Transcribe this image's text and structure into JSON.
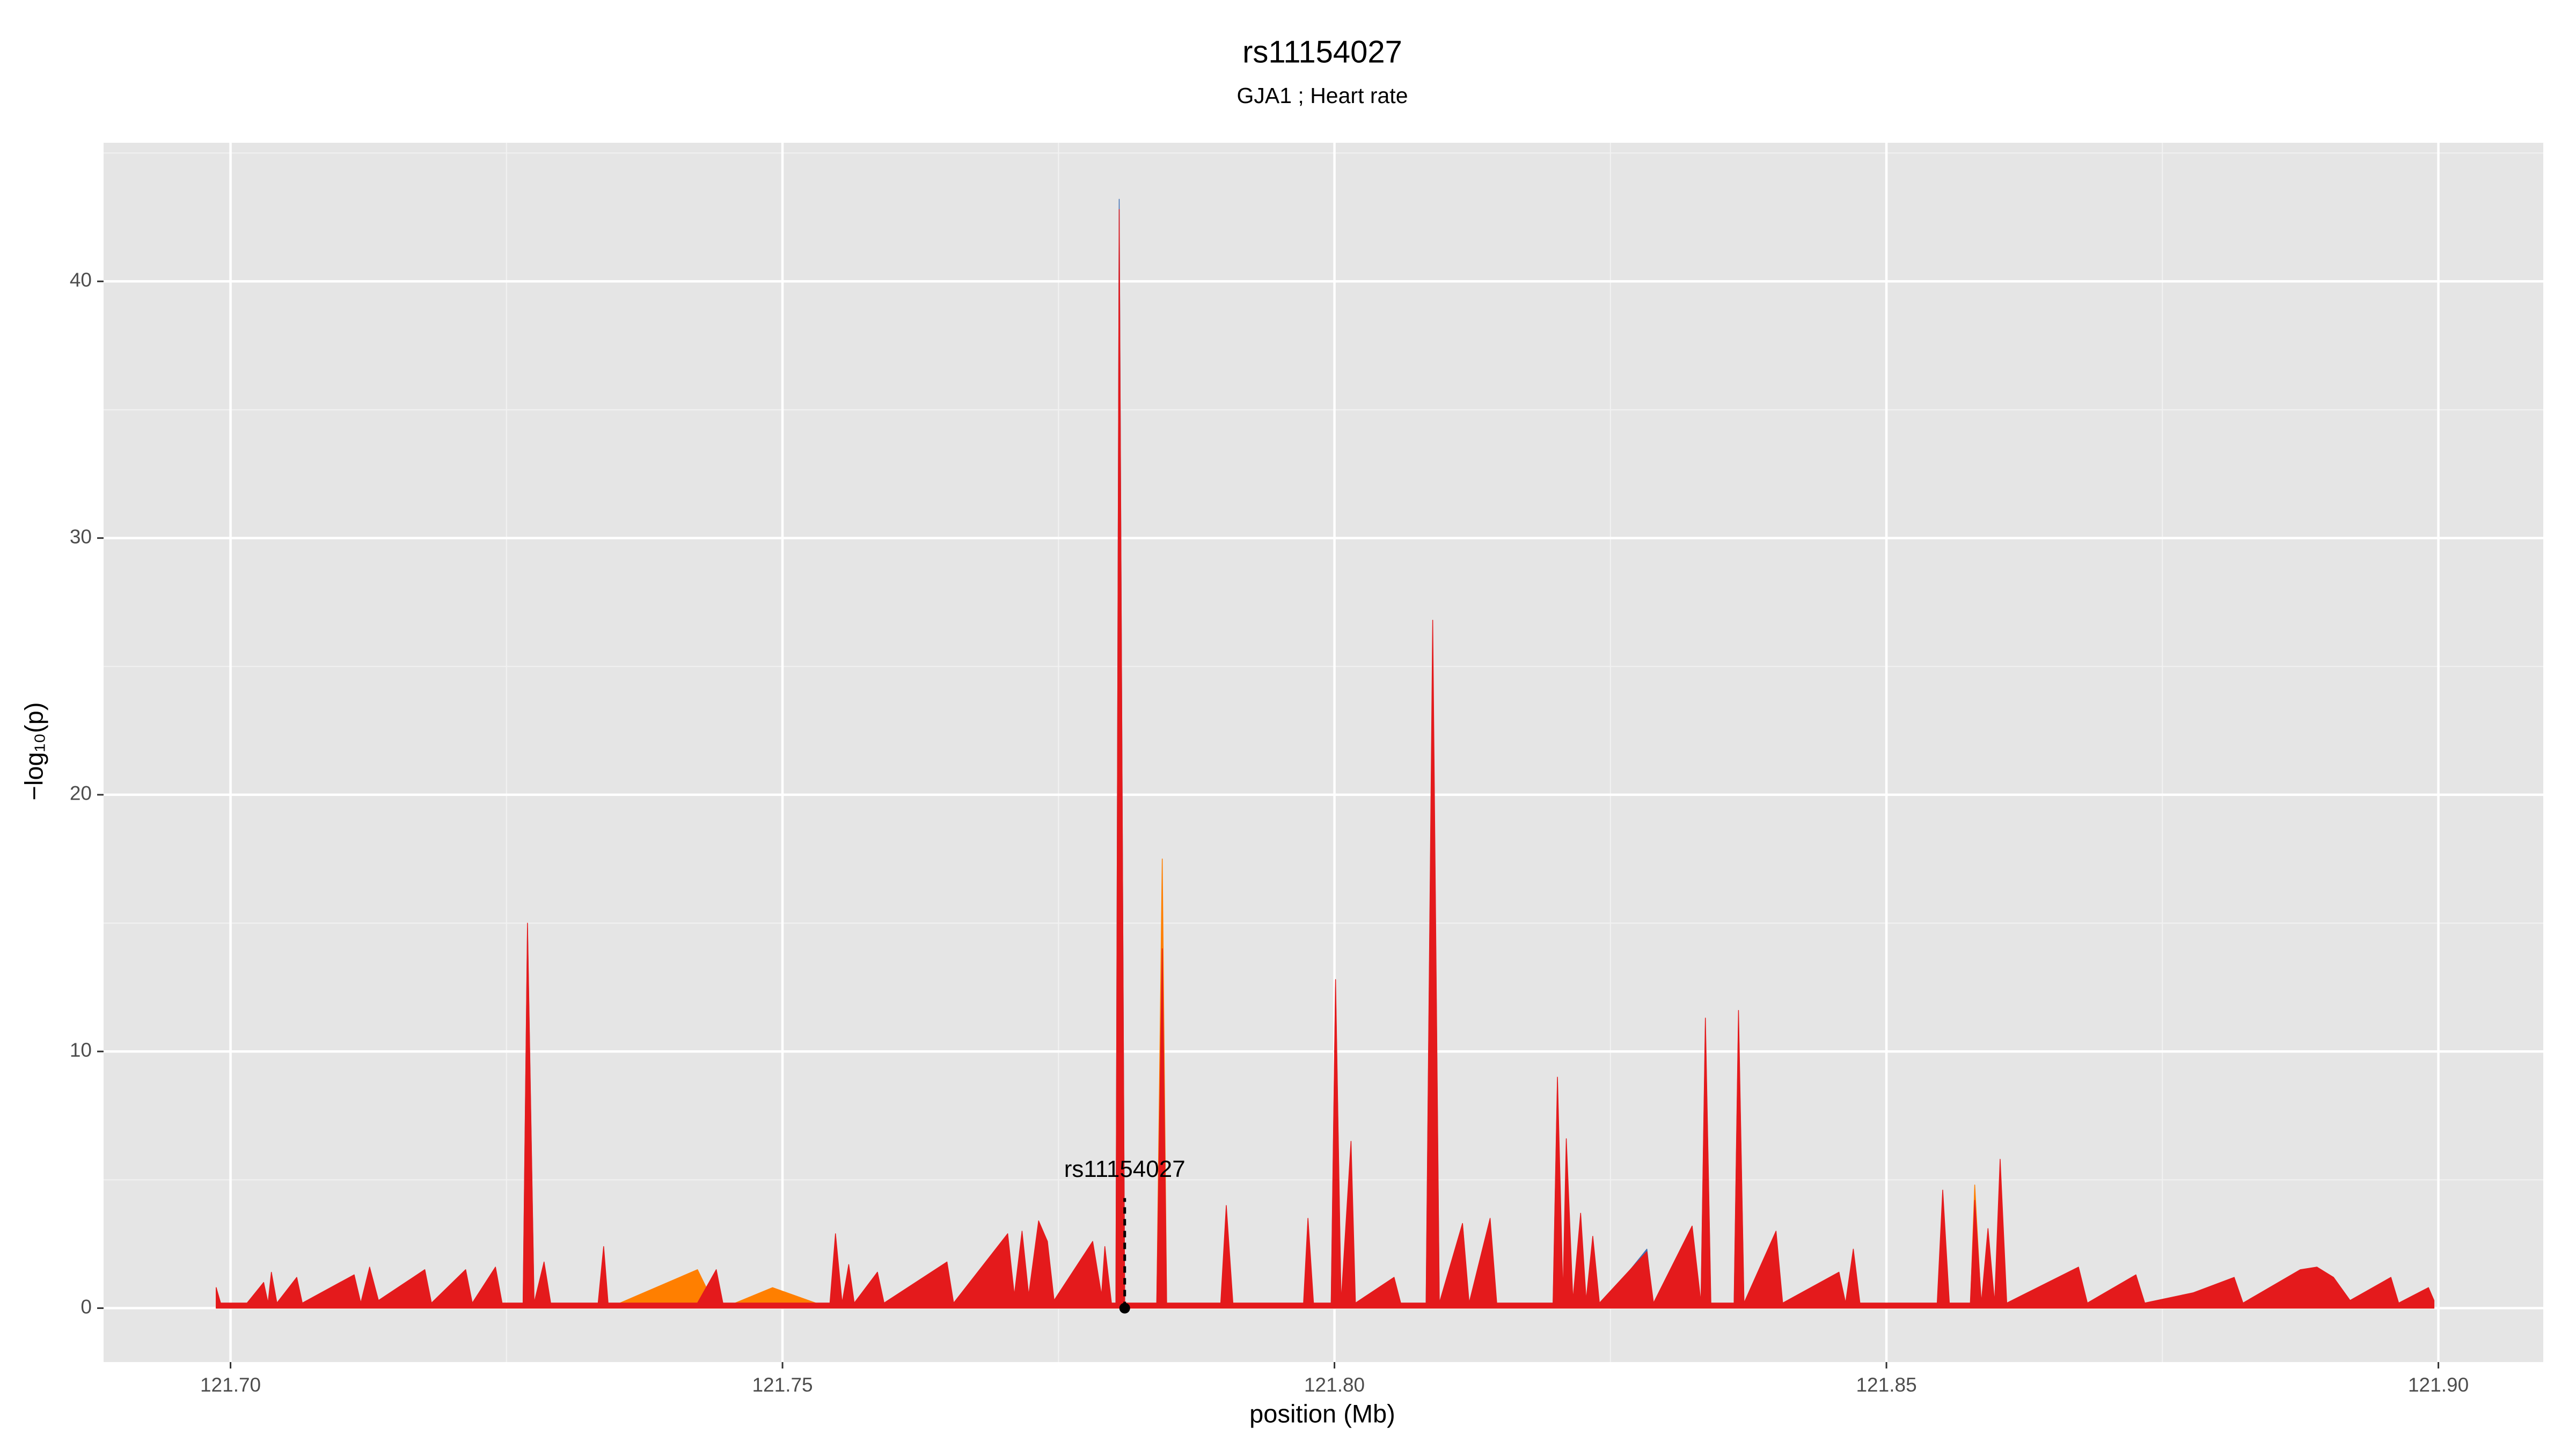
{
  "chart_data": {
    "type": "area",
    "title": "rs11154027",
    "subtitle": "GJA1 ; Heart rate",
    "x_label": "position (Mb)",
    "y_label": "−log₁₀(p)",
    "grid": true,
    "background": "#e5e5e5",
    "xlim": [
      121.6885,
      121.9095
    ],
    "ylim": [
      -2.1,
      45.4
    ],
    "xticks": [
      {
        "value": 121.7,
        "label": "121.70"
      },
      121.75,
      {
        "value": 121.8,
        "label": "121.80"
      },
      121.85,
      {
        "value": 121.9,
        "label": "121.90"
      }
    ],
    "yticks": [
      0,
      10,
      20,
      30,
      40
    ],
    "x_minor_ticks": [
      121.725,
      121.775,
      121.825,
      121.875
    ],
    "y_minor_ticks": [
      5,
      15,
      25,
      35,
      45
    ],
    "x": [
      121.6987,
      121.6991,
      121.7015,
      121.703,
      121.7034,
      121.7037,
      121.7042,
      121.706,
      121.7065,
      121.7112,
      121.7118,
      121.7126,
      121.7134,
      121.7176,
      121.7182,
      121.7213,
      121.7219,
      121.724,
      121.7246,
      121.7265,
      121.7269,
      121.7275,
      121.7284,
      121.729,
      121.7333,
      121.7338,
      121.7342,
      121.7423,
      121.744,
      121.7446,
      121.7491,
      121.7543,
      121.7548,
      121.7554,
      121.756,
      121.7565,
      121.7586,
      121.7592,
      121.7649,
      121.7655,
      121.7704,
      121.771,
      121.7717,
      121.7723,
      121.7732,
      121.774,
      121.7746,
      121.7781,
      121.7789,
      121.7792,
      121.7798,
      121.7802,
      121.7805,
      121.781,
      121.7839,
      121.7844,
      121.7848,
      121.7897,
      121.7902,
      121.7908,
      121.7972,
      121.7976,
      121.7981,
      121.7997,
      121.8001,
      121.8006,
      121.8015,
      121.8019,
      121.8054,
      121.806,
      121.8083,
      121.8089,
      121.8095,
      121.8116,
      121.8122,
      121.8141,
      121.8147,
      121.8198,
      121.8202,
      121.8207,
      121.821,
      121.8216,
      121.8223,
      121.8228,
      121.8234,
      121.824,
      121.8283,
      121.8289,
      121.8324,
      121.8332,
      121.8336,
      121.8341,
      121.8362,
      121.8366,
      121.8371,
      121.84,
      121.8406,
      121.8457,
      121.8463,
      121.847,
      121.8476,
      121.8546,
      121.8551,
      121.8557,
      121.8576,
      121.858,
      121.8586,
      121.8592,
      121.8598,
      121.8603,
      121.8609,
      121.8674,
      121.8682,
      121.8726,
      121.8734,
      121.8778,
      121.8815,
      121.8823,
      121.8875,
      121.889,
      121.8905,
      121.892,
      121.8957,
      121.8964,
      121.8991,
      121.8996
    ],
    "series": [
      {
        "color": "#3f6fb5",
        "values": [
          0,
          0,
          0,
          1.0,
          0,
          0,
          0,
          0,
          0,
          0,
          0,
          0,
          0,
          0,
          0,
          0,
          0,
          0,
          0,
          0,
          14.8,
          0,
          0,
          0,
          0,
          0,
          0,
          0,
          0,
          0,
          0,
          0,
          0,
          0,
          0,
          0,
          1.4,
          0,
          0,
          0,
          0,
          0,
          0,
          0,
          0,
          0,
          0,
          0,
          0,
          0,
          0,
          0,
          43.2,
          0,
          0,
          0,
          0,
          0,
          3.8,
          0,
          0,
          3.4,
          0,
          0,
          12.5,
          0,
          0,
          0,
          0,
          0,
          0,
          26.0,
          0,
          0,
          0,
          0,
          0,
          0,
          8.8,
          0,
          0,
          0,
          0,
          0,
          0,
          0,
          2.3,
          0,
          0,
          0,
          11.0,
          0,
          0,
          11.3,
          0,
          0,
          0,
          1.4,
          0,
          0,
          0,
          0,
          0,
          0,
          0,
          0,
          0,
          0,
          0,
          0,
          0,
          0,
          0,
          0,
          0,
          0.6,
          0,
          0,
          0,
          0,
          0,
          0,
          0.8,
          0,
          0,
          0
        ]
      },
      {
        "color": "#ff7f00",
        "values": [
          0.8,
          0,
          0,
          0,
          0,
          0,
          0,
          0,
          0,
          0,
          0,
          0,
          0,
          0,
          0,
          0,
          0,
          0,
          0,
          0,
          0,
          0,
          0,
          0,
          0,
          0,
          0,
          1.5,
          0,
          0,
          0.8,
          0,
          0,
          0,
          0,
          0,
          0,
          0,
          0,
          0,
          0,
          0,
          0,
          0,
          0,
          0,
          0,
          0,
          0,
          0,
          0,
          0,
          0,
          0,
          0,
          17.5,
          0,
          0,
          0,
          0,
          0,
          0,
          0,
          0,
          0,
          0,
          0,
          0,
          1.2,
          0,
          0,
          0,
          0,
          3.3,
          0,
          0,
          0,
          0,
          0,
          0,
          0,
          0,
          0,
          0,
          0,
          0,
          0,
          0,
          0,
          0,
          0,
          0,
          0,
          0,
          0,
          0,
          0,
          0,
          0,
          0,
          0,
          0,
          0,
          0,
          0,
          4.8,
          0,
          0,
          0,
          0,
          0,
          0,
          0,
          0,
          0,
          0,
          0,
          0,
          0,
          0,
          0,
          0,
          0,
          0,
          0.8,
          0
        ]
      },
      {
        "color": "#e41a1c",
        "values": [
          0.8,
          0.2,
          0.2,
          1.0,
          0.2,
          1.4,
          0.2,
          1.2,
          0.2,
          1.3,
          0.2,
          1.6,
          0.3,
          1.5,
          0.2,
          1.5,
          0.2,
          1.6,
          0.2,
          0.2,
          15.0,
          0.2,
          1.8,
          0.2,
          0.2,
          2.4,
          0.2,
          0.2,
          1.5,
          0.2,
          0.2,
          0.2,
          2.9,
          0.2,
          1.7,
          0.2,
          1.4,
          0.2,
          1.8,
          0.2,
          2.9,
          0.5,
          3.0,
          0.5,
          3.4,
          2.6,
          0.3,
          2.6,
          0.5,
          2.4,
          0.2,
          0.2,
          42.8,
          0.2,
          0.2,
          14.0,
          0.2,
          0.2,
          4.0,
          0.2,
          0.2,
          3.5,
          0.2,
          0.2,
          12.8,
          0.2,
          6.5,
          0.2,
          1.2,
          0.2,
          0.2,
          26.8,
          0.2,
          3.3,
          0.2,
          3.5,
          0.2,
          0.2,
          9.0,
          0.5,
          6.6,
          0.3,
          3.7,
          0.3,
          2.8,
          0.2,
          2.2,
          0.2,
          3.2,
          0.2,
          11.3,
          0.2,
          0.2,
          11.6,
          0.2,
          3.0,
          0.2,
          1.4,
          0.2,
          2.3,
          0.2,
          0.2,
          4.6,
          0.2,
          0.2,
          4.2,
          0.2,
          3.1,
          0.2,
          5.8,
          0.2,
          1.6,
          0.2,
          1.3,
          0.2,
          0.6,
          1.2,
          0.2,
          1.5,
          1.6,
          1.2,
          0.3,
          1.2,
          0.2,
          0.8,
          0.3
        ]
      }
    ],
    "annotations": [
      {
        "text": "rs11154027",
        "x": 121.781,
        "y": 0
      }
    ]
  }
}
